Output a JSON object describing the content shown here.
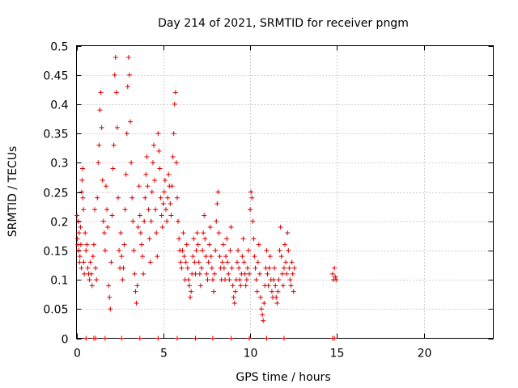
{
  "chart_data": {
    "type": "scatter",
    "title": "Day 214 of 2021, SRMTID for receiver pngm",
    "xlabel": "GPS time / hours",
    "ylabel": "SRMTID / TECUs",
    "xlim": [
      0,
      24
    ],
    "ylim": [
      0,
      0.5
    ],
    "x_ticks": [
      0,
      5,
      10,
      15,
      20
    ],
    "x_tick_labels": [
      "0",
      "5",
      "10",
      "15",
      "20"
    ],
    "y_ticks": [
      0,
      0.05,
      0.1,
      0.15,
      0.2,
      0.25,
      0.3,
      0.35,
      0.4,
      0.45,
      0.5
    ],
    "y_tick_labels": [
      "0",
      "0.05",
      "0.1",
      "0.15",
      "0.2",
      "0.25",
      "0.3",
      "0.35",
      "0.4",
      "0.45",
      "0.5"
    ],
    "grid": true,
    "marker": "+",
    "color": "#dd0000",
    "series": [
      {
        "name": "SRMTID",
        "points": [
          [
            0.03,
            0.21
          ],
          [
            0.05,
            0.17
          ],
          [
            0.08,
            0.16
          ],
          [
            0.1,
            0.2
          ],
          [
            0.13,
            0.15
          ],
          [
            0.15,
            0.18
          ],
          [
            0.18,
            0.13
          ],
          [
            0.2,
            0.14
          ],
          [
            0.23,
            0.19
          ],
          [
            0.25,
            0.16
          ],
          [
            0.28,
            0.12
          ],
          [
            0.3,
            0.25
          ],
          [
            0.32,
            0.27
          ],
          [
            0.35,
            0.29
          ],
          [
            0.37,
            0.24
          ],
          [
            0.4,
            0.22
          ],
          [
            0.42,
            0.13
          ],
          [
            0.45,
            0.11
          ],
          [
            0.5,
            0.18
          ],
          [
            0.55,
            0.15
          ],
          [
            0.6,
            0.16
          ],
          [
            0.65,
            0.12
          ],
          [
            0.7,
            0.11
          ],
          [
            0.75,
            0.1
          ],
          [
            0.8,
            0.13
          ],
          [
            0.85,
            0.11
          ],
          [
            0.9,
            0.09
          ],
          [
            0.95,
            0.14
          ],
          [
            1.0,
            0.16
          ],
          [
            1.05,
            0.22
          ],
          [
            1.1,
            0.12
          ],
          [
            1.15,
            0.1
          ],
          [
            1.2,
            0.24
          ],
          [
            1.25,
            0.3
          ],
          [
            1.3,
            0.33
          ],
          [
            1.35,
            0.39
          ],
          [
            1.4,
            0.42
          ],
          [
            1.45,
            0.36
          ],
          [
            1.5,
            0.27
          ],
          [
            1.55,
            0.2
          ],
          [
            1.6,
            0.18
          ],
          [
            1.65,
            0.15
          ],
          [
            1.7,
            0.26
          ],
          [
            1.75,
            0.22
          ],
          [
            1.8,
            0.19
          ],
          [
            1.85,
            0.09
          ],
          [
            1.9,
            0.07
          ],
          [
            1.95,
            0.05
          ],
          [
            2.0,
            0.13
          ],
          [
            2.05,
            0.21
          ],
          [
            2.1,
            0.29
          ],
          [
            2.15,
            0.33
          ],
          [
            2.2,
            0.45
          ],
          [
            2.25,
            0.48
          ],
          [
            2.3,
            0.42
          ],
          [
            2.35,
            0.36
          ],
          [
            2.4,
            0.24
          ],
          [
            2.45,
            0.15
          ],
          [
            2.5,
            0.12
          ],
          [
            2.55,
            0.18
          ],
          [
            2.6,
            0.14
          ],
          [
            2.65,
            0.1
          ],
          [
            2.7,
            0.12
          ],
          [
            2.75,
            0.16
          ],
          [
            2.8,
            0.22
          ],
          [
            2.85,
            0.28
          ],
          [
            2.9,
            0.35
          ],
          [
            2.95,
            0.43
          ],
          [
            3.0,
            0.48
          ],
          [
            3.05,
            0.45
          ],
          [
            3.1,
            0.37
          ],
          [
            3.15,
            0.3
          ],
          [
            3.2,
            0.24
          ],
          [
            3.25,
            0.2
          ],
          [
            3.3,
            0.15
          ],
          [
            3.35,
            0.11
          ],
          [
            3.4,
            0.08
          ],
          [
            3.45,
            0.06
          ],
          [
            3.5,
            0.09
          ],
          [
            3.55,
            0.19
          ],
          [
            3.6,
            0.26
          ],
          [
            3.65,
            0.21
          ],
          [
            3.7,
            0.18
          ],
          [
            3.75,
            0.16
          ],
          [
            3.8,
            0.14
          ],
          [
            3.85,
            0.11
          ],
          [
            3.9,
            0.2
          ],
          [
            3.95,
            0.24
          ],
          [
            4.0,
            0.28
          ],
          [
            4.05,
            0.31
          ],
          [
            4.1,
            0.26
          ],
          [
            4.15,
            0.22
          ],
          [
            4.2,
            0.17
          ],
          [
            4.25,
            0.13
          ],
          [
            4.3,
            0.2
          ],
          [
            4.35,
            0.25
          ],
          [
            4.4,
            0.3
          ],
          [
            4.45,
            0.33
          ],
          [
            4.5,
            0.27
          ],
          [
            4.55,
            0.22
          ],
          [
            4.6,
            0.18
          ],
          [
            4.65,
            0.14
          ],
          [
            4.7,
            0.35
          ],
          [
            4.75,
            0.32
          ],
          [
            4.8,
            0.29
          ],
          [
            4.85,
            0.24
          ],
          [
            4.9,
            0.21
          ],
          [
            4.95,
            0.19
          ],
          [
            5.0,
            0.23
          ],
          [
            5.05,
            0.25
          ],
          [
            5.1,
            0.27
          ],
          [
            5.15,
            0.22
          ],
          [
            5.2,
            0.2
          ],
          [
            5.25,
            0.24
          ],
          [
            5.3,
            0.28
          ],
          [
            5.35,
            0.26
          ],
          [
            5.4,
            0.23
          ],
          [
            5.45,
            0.21
          ],
          [
            5.5,
            0.26
          ],
          [
            5.55,
            0.31
          ],
          [
            5.6,
            0.35
          ],
          [
            5.65,
            0.4
          ],
          [
            5.7,
            0.42
          ],
          [
            5.75,
            0.3
          ],
          [
            5.8,
            0.24
          ],
          [
            5.85,
            0.2
          ],
          [
            5.9,
            0.17
          ],
          [
            5.95,
            0.15
          ],
          [
            6.0,
            0.13
          ],
          [
            6.05,
            0.12
          ],
          [
            6.1,
            0.15
          ],
          [
            6.15,
            0.18
          ],
          [
            6.2,
            0.14
          ],
          [
            6.25,
            0.1
          ],
          [
            6.3,
            0.13
          ],
          [
            6.35,
            0.16
          ],
          [
            6.4,
            0.12
          ],
          [
            6.45,
            0.1
          ],
          [
            6.5,
            0.09
          ],
          [
            6.55,
            0.07
          ],
          [
            6.6,
            0.08
          ],
          [
            6.65,
            0.11
          ],
          [
            6.7,
            0.14
          ],
          [
            6.75,
            0.17
          ],
          [
            6.8,
            0.13
          ],
          [
            6.85,
            0.11
          ],
          [
            6.9,
            0.15
          ],
          [
            6.95,
            0.18
          ],
          [
            7.0,
            0.16
          ],
          [
            7.05,
            0.13
          ],
          [
            7.1,
            0.11
          ],
          [
            7.15,
            0.09
          ],
          [
            7.2,
            0.12
          ],
          [
            7.25,
            0.15
          ],
          [
            7.3,
            0.18
          ],
          [
            7.35,
            0.21
          ],
          [
            7.4,
            0.17
          ],
          [
            7.45,
            0.14
          ],
          [
            7.5,
            0.11
          ],
          [
            7.55,
            0.1
          ],
          [
            7.6,
            0.13
          ],
          [
            7.65,
            0.16
          ],
          [
            7.7,
            0.19
          ],
          [
            7.75,
            0.14
          ],
          [
            7.8,
            0.12
          ],
          [
            7.85,
            0.1
          ],
          [
            7.9,
            0.08
          ],
          [
            7.95,
            0.11
          ],
          [
            8.0,
            0.15
          ],
          [
            8.05,
            0.2
          ],
          [
            8.1,
            0.23
          ],
          [
            8.15,
            0.25
          ],
          [
            8.2,
            0.18
          ],
          [
            8.25,
            0.14
          ],
          [
            8.3,
            0.12
          ],
          [
            8.35,
            0.1
          ],
          [
            8.4,
            0.13
          ],
          [
            8.45,
            0.16
          ],
          [
            8.5,
            0.12
          ],
          [
            8.55,
            0.1
          ],
          [
            8.6,
            0.14
          ],
          [
            8.65,
            0.17
          ],
          [
            8.7,
            0.13
          ],
          [
            8.75,
            0.11
          ],
          [
            8.8,
            0.1
          ],
          [
            8.85,
            0.15
          ],
          [
            8.9,
            0.19
          ],
          [
            8.95,
            0.12
          ],
          [
            9.0,
            0.09
          ],
          [
            9.05,
            0.07
          ],
          [
            9.1,
            0.06
          ],
          [
            9.15,
            0.08
          ],
          [
            9.2,
            0.1
          ],
          [
            9.25,
            0.13
          ],
          [
            9.3,
            0.15
          ],
          [
            9.35,
            0.12
          ],
          [
            9.4,
            0.1
          ],
          [
            9.45,
            0.09
          ],
          [
            9.5,
            0.11
          ],
          [
            9.55,
            0.14
          ],
          [
            9.6,
            0.17
          ],
          [
            9.65,
            0.13
          ],
          [
            9.7,
            0.11
          ],
          [
            9.75,
            0.09
          ],
          [
            9.8,
            0.1
          ],
          [
            9.85,
            0.12
          ],
          [
            9.9,
            0.15
          ],
          [
            9.95,
            0.11
          ],
          [
            10.0,
            0.22
          ],
          [
            10.05,
            0.25
          ],
          [
            10.1,
            0.24
          ],
          [
            10.15,
            0.2
          ],
          [
            10.2,
            0.17
          ],
          [
            10.25,
            0.14
          ],
          [
            10.3,
            0.12
          ],
          [
            10.35,
            0.1
          ],
          [
            10.4,
            0.08
          ],
          [
            10.45,
            0.13
          ],
          [
            10.5,
            0.16
          ],
          [
            10.55,
            0.11
          ],
          [
            10.6,
            0.07
          ],
          [
            10.65,
            0.05
          ],
          [
            10.7,
            0.04
          ],
          [
            10.75,
            0.03
          ],
          [
            10.8,
            0.06
          ],
          [
            10.85,
            0.09
          ],
          [
            10.9,
            0.12
          ],
          [
            10.95,
            0.15
          ],
          [
            11.0,
            0.11
          ],
          [
            11.05,
            0.09
          ],
          [
            11.1,
            0.12
          ],
          [
            11.15,
            0.14
          ],
          [
            11.2,
            0.1
          ],
          [
            11.25,
            0.08
          ],
          [
            11.3,
            0.07
          ],
          [
            11.35,
            0.1
          ],
          [
            11.4,
            0.12
          ],
          [
            11.45,
            0.09
          ],
          [
            11.5,
            0.07
          ],
          [
            11.55,
            0.06
          ],
          [
            11.6,
            0.08
          ],
          [
            11.65,
            0.1
          ],
          [
            11.7,
            0.15
          ],
          [
            11.75,
            0.19
          ],
          [
            11.8,
            0.14
          ],
          [
            11.85,
            0.11
          ],
          [
            11.9,
            0.09
          ],
          [
            11.95,
            0.12
          ],
          [
            12.0,
            0.16
          ],
          [
            12.05,
            0.13
          ],
          [
            12.1,
            0.11
          ],
          [
            12.15,
            0.18
          ],
          [
            12.2,
            0.15
          ],
          [
            12.25,
            0.12
          ],
          [
            12.3,
            0.1
          ],
          [
            12.35,
            0.09
          ],
          [
            12.4,
            0.13
          ],
          [
            12.45,
            0.11
          ],
          [
            12.5,
            0.08
          ],
          [
            12.55,
            0.12
          ],
          [
            14.75,
            0.11
          ],
          [
            14.8,
            0.1
          ],
          [
            14.85,
            0.12
          ],
          [
            14.9,
            0.105
          ],
          [
            14.95,
            0.1
          ]
        ]
      },
      {
        "name": "zero",
        "points": [
          [
            0.55,
            0
          ],
          [
            1.0,
            0
          ],
          [
            1.1,
            0
          ],
          [
            1.65,
            0
          ],
          [
            2.6,
            0
          ],
          [
            3.65,
            0
          ],
          [
            4.7,
            0
          ],
          [
            5.8,
            0
          ],
          [
            6.85,
            0
          ],
          [
            7.85,
            0
          ],
          [
            8.9,
            0
          ],
          [
            9.95,
            0
          ],
          [
            10.95,
            0
          ],
          [
            11.95,
            0
          ],
          [
            14.75,
            0
          ],
          [
            14.85,
            0
          ]
        ]
      }
    ]
  }
}
